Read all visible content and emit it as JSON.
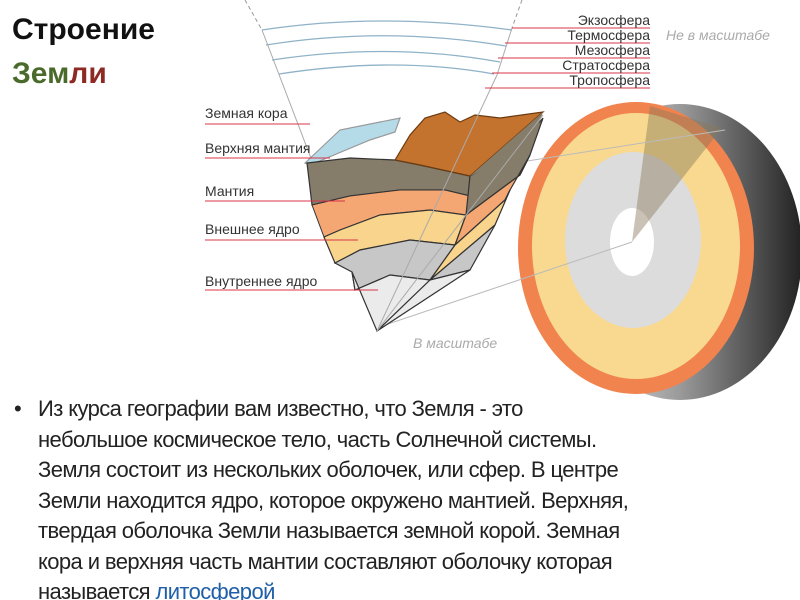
{
  "title": {
    "line1": "Строение",
    "line2_part1": "Зем",
    "line2_part2": "ли"
  },
  "colors": {
    "title_green": "#4a6a2c",
    "title_red": "#8e2a24",
    "label_line": "#d9344a",
    "link": "#1f5fa8"
  },
  "diagram": {
    "atmosphere_labels": [
      "Экзосфера",
      "Термосфера",
      "Мезосфера",
      "Стратосфера",
      "Тропосфера"
    ],
    "not_to_scale": "Не в масштабе",
    "to_scale": "В масштабе",
    "layer_labels": [
      "Земная кора",
      "Верхняя мантия",
      "Мантия",
      "Внешнее ядро",
      "Внутреннее ядро"
    ]
  },
  "body": {
    "bullet": "•",
    "lines": [
      "Из курса географии вам известно, что Земля - это",
      "небольшое космическое тело, часть Солнечной системы.",
      "Земля состоит из нескольких оболочек, или сфер. В центре",
      "Земли находится ядро, которое окружено мантией. Верхняя,",
      "твердая оболочка Земли называется земной корой. Земная",
      "кора и верхняя часть мантии составляют оболочку которая"
    ],
    "last_line_prefix": "называется ",
    "last_line_link": "литосферой"
  }
}
